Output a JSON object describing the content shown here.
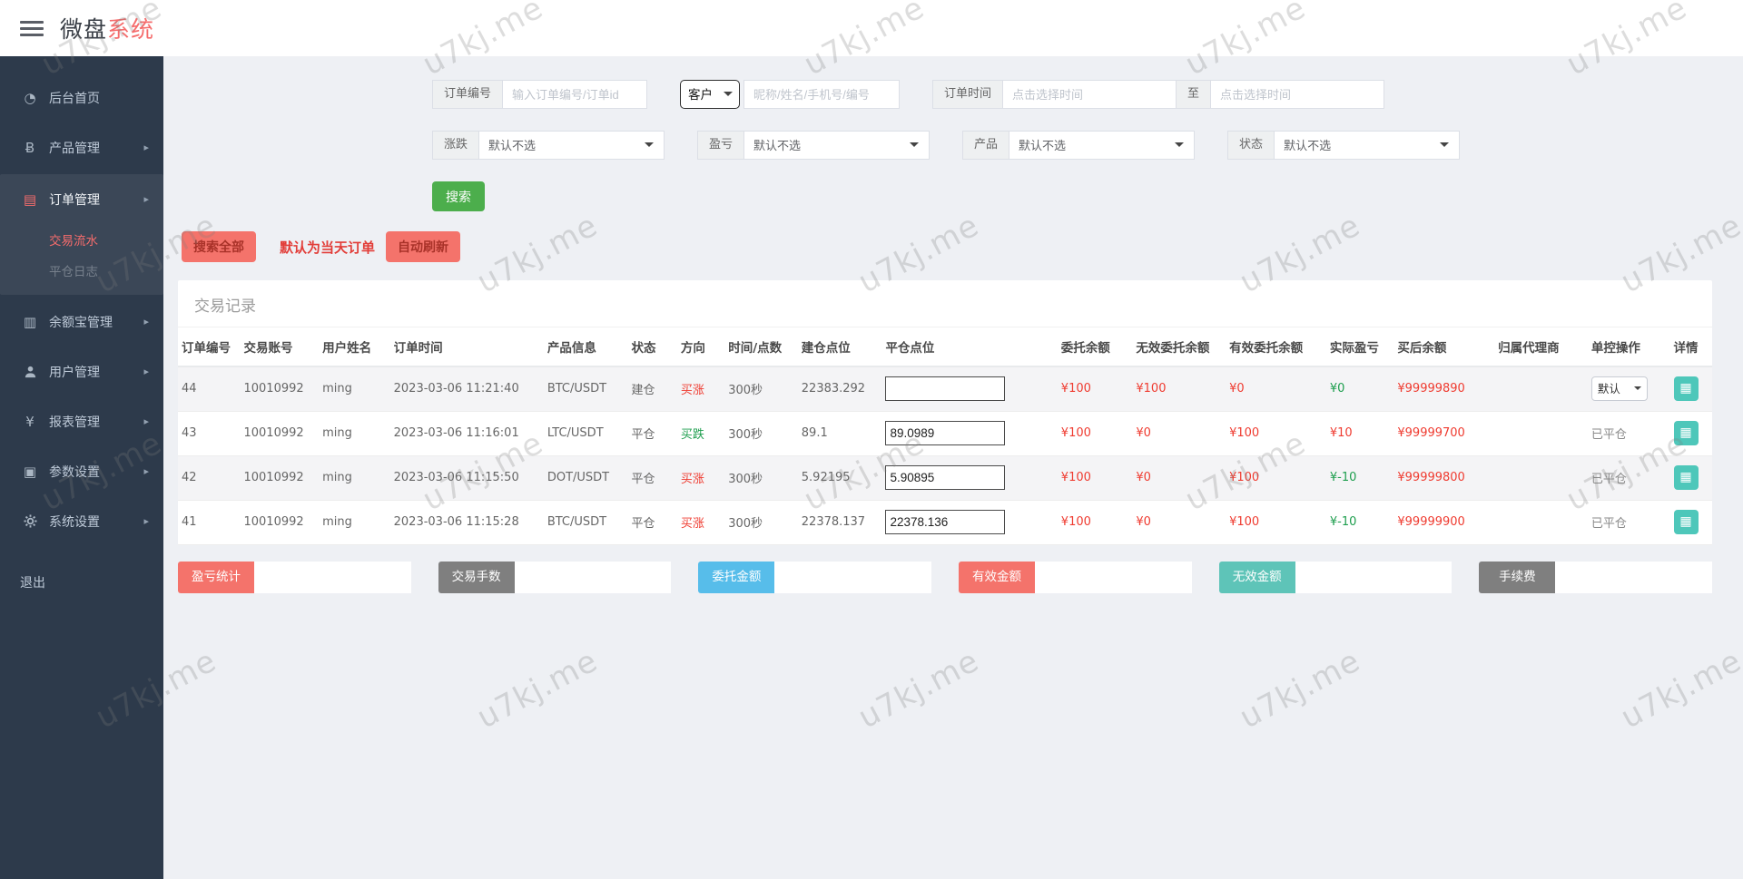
{
  "header": {
    "title_primary": "微盘",
    "title_accent": "系统"
  },
  "watermark_text": "u7kj.me",
  "icons": {
    "dashboard": "◔",
    "product": "Ƀ",
    "orders": "▤",
    "wallet": "▥",
    "report": "¥",
    "params": "▣",
    "arrow": "▸",
    "detail": "▦"
  },
  "sidebar": {
    "items": [
      {
        "label": "后台首页"
      },
      {
        "label": "产品管理"
      },
      {
        "label": "订单管理"
      },
      {
        "label": "交易流水"
      },
      {
        "label": "平仓日志"
      },
      {
        "label": "余额宝管理"
      },
      {
        "label": "用户管理"
      },
      {
        "label": "报表管理"
      },
      {
        "label": "参数设置"
      },
      {
        "label": "系统设置"
      },
      {
        "label": "退出"
      }
    ]
  },
  "filters": {
    "order_no_label": "订单编号",
    "order_no_placeholder": "输入订单编号/订单id",
    "customer_select_value": "客户",
    "customer_placeholder": "昵称/姓名/手机号/编号",
    "time_label": "订单时间",
    "time_from_placeholder": "点击选择时间",
    "to_label": "至",
    "time_to_placeholder": "点击选择时间",
    "updown_label": "涨跌",
    "updown_value": "默认不选",
    "profit_label": "盈亏",
    "profit_value": "默认不选",
    "product_label": "产品",
    "product_value": "默认不选",
    "status_label": "状态",
    "status_value": "默认不选",
    "search_button": "搜索"
  },
  "toolbar": {
    "search_all": "搜索全部",
    "today_note": "默认为当天订单",
    "auto_refresh": "自动刷新"
  },
  "table": {
    "panel_title": "交易记录",
    "headers": [
      "订单编号",
      "交易账号",
      "用户姓名",
      "订单时间",
      "产品信息",
      "状态",
      "方向",
      "时间/点数",
      "建仓点位",
      "平仓点位",
      "委托余额",
      "无效委托余额",
      "有效委托余额",
      "实际盈亏",
      "买后余额",
      "归属代理商",
      "单控操作",
      "详情"
    ],
    "rows": [
      {
        "id": "44",
        "account": "10010992",
        "name": "ming",
        "time": "2023-03-06 11:21:40",
        "product": "BTC/USDT",
        "status": "建仓",
        "direction": "买涨",
        "dir_color": "red",
        "duration": "300秒",
        "open_point": "22383.292",
        "close_value": "",
        "entrust": "¥100",
        "invalid_entrust": "¥100",
        "valid_entrust": "¥0",
        "profit": "¥0",
        "profit_color": "green",
        "balance": "¥99999890",
        "agent": "",
        "control": "默认"
      },
      {
        "id": "43",
        "account": "10010992",
        "name": "ming",
        "time": "2023-03-06 11:16:01",
        "product": "LTC/USDT",
        "status": "平仓",
        "direction": "买跌",
        "dir_color": "green",
        "duration": "300秒",
        "open_point": "89.1",
        "close_value": "89.0989",
        "entrust": "¥100",
        "invalid_entrust": "¥0",
        "valid_entrust": "¥100",
        "profit": "¥10",
        "profit_color": "red",
        "balance": "¥99999700",
        "agent": "",
        "control": "已平仓"
      },
      {
        "id": "42",
        "account": "10010992",
        "name": "ming",
        "time": "2023-03-06 11:15:50",
        "product": "DOT/USDT",
        "status": "平仓",
        "direction": "买涨",
        "dir_color": "red",
        "duration": "300秒",
        "open_point": "5.92195",
        "close_value": "5.90895",
        "entrust": "¥100",
        "invalid_entrust": "¥0",
        "valid_entrust": "¥100",
        "profit": "¥-10",
        "profit_color": "green",
        "balance": "¥99999800",
        "agent": "",
        "control": "已平仓"
      },
      {
        "id": "41",
        "account": "10010992",
        "name": "ming",
        "time": "2023-03-06 11:15:28",
        "product": "BTC/USDT",
        "status": "平仓",
        "direction": "买涨",
        "dir_color": "red",
        "duration": "300秒",
        "open_point": "22378.137",
        "close_value": "22378.136",
        "entrust": "¥100",
        "invalid_entrust": "¥0",
        "valid_entrust": "¥100",
        "profit": "¥-10",
        "profit_color": "green",
        "balance": "¥99999900",
        "agent": "",
        "control": "已平仓"
      }
    ]
  },
  "summary": {
    "items": [
      {
        "label": "盈亏统计",
        "color": "#f4736b",
        "value": ""
      },
      {
        "label": "交易手数",
        "color": "#7f7f7f",
        "value": ""
      },
      {
        "label": "委托金额",
        "color": "#57bdea",
        "value": ""
      },
      {
        "label": "有效金额",
        "color": "#f4736b",
        "value": ""
      },
      {
        "label": "无效金额",
        "color": "#5ec4b8",
        "value": ""
      },
      {
        "label": "手续费",
        "color": "#7f7f7f",
        "value": ""
      }
    ]
  }
}
